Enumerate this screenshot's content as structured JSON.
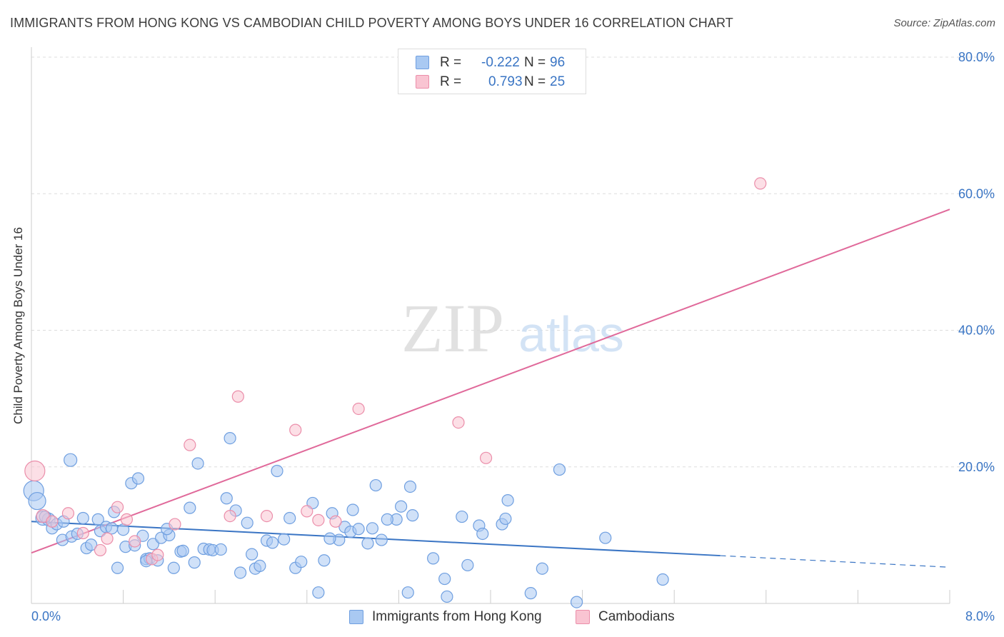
{
  "title": "IMMIGRANTS FROM HONG KONG VS CAMBODIAN CHILD POVERTY AMONG BOYS UNDER 16 CORRELATION CHART",
  "source": "Source: ZipAtlas.com",
  "watermark": {
    "zip": "ZIP",
    "atlas": "atlas"
  },
  "legend": {
    "rows": [
      {
        "r_label": "R =",
        "r_value": "-0.222",
        "n_label": "N =",
        "n_value": "96",
        "color": "#a9c9f2",
        "border": "#6f9fe0"
      },
      {
        "r_label": "R =",
        "r_value": "0.793",
        "n_label": "N =",
        "n_value": "25",
        "color": "#f9c4d2",
        "border": "#eb8eaa"
      }
    ]
  },
  "bottom_legend": {
    "series1": "Immigrants from Hong Kong",
    "series2": "Cambodians"
  },
  "colors": {
    "blue": "#3a75c4",
    "blue_fill": "#a9c9f2",
    "blue_stroke": "#6f9fe0",
    "pink": "#e0699a",
    "pink_fill": "#f9c4d2",
    "pink_stroke": "#eb8eaa",
    "grid": "#dddddd",
    "tick_text": "#3a75c4"
  },
  "chart_data": {
    "type": "scatter",
    "title": "IMMIGRANTS FROM HONG KONG VS CAMBODIAN CHILD POVERTY AMONG BOYS UNDER 16 CORRELATION CHART",
    "xlabel": "",
    "ylabel": "Child Poverty Among Boys Under 16",
    "xlim": [
      0,
      8
    ],
    "ylim": [
      0,
      80
    ],
    "x_tick_labels": [
      "0.0%",
      "8.0%"
    ],
    "y_tick_labels": [
      {
        "value": 20,
        "label": "20.0%"
      },
      {
        "value": 40,
        "label": "40.0%"
      },
      {
        "value": 60,
        "label": "60.0%"
      },
      {
        "value": 80,
        "label": "80.0%"
      }
    ],
    "series": [
      {
        "name": "Immigrants from Hong Kong",
        "color": "#6f9fe0",
        "trend": {
          "x0": 0,
          "y0": 12.0,
          "x1": 6.0,
          "y1": 7.0,
          "dashed_to_x": 8.0,
          "dashed_to_y": 5.3
        },
        "points": [
          [
            0.02,
            16.5,
            14
          ],
          [
            0.05,
            15.0,
            12
          ],
          [
            0.1,
            12.5,
            10
          ],
          [
            0.15,
            12.3,
            9
          ],
          [
            0.18,
            11.0,
            8
          ],
          [
            0.22,
            11.6,
            8
          ],
          [
            0.28,
            12.0,
            8
          ],
          [
            0.27,
            9.3,
            8
          ],
          [
            0.35,
            9.8,
            8
          ],
          [
            0.4,
            10.2,
            8
          ],
          [
            0.48,
            8.1,
            8
          ],
          [
            0.52,
            8.6,
            8
          ],
          [
            0.45,
            12.5,
            8
          ],
          [
            0.58,
            12.3,
            8
          ],
          [
            0.6,
            10.6,
            8
          ],
          [
            0.65,
            11.2,
            8
          ],
          [
            0.72,
            13.4,
            8
          ],
          [
            0.75,
            5.2,
            8
          ],
          [
            0.8,
            10.8,
            8
          ],
          [
            0.82,
            8.3,
            8
          ],
          [
            0.87,
            17.6,
            8
          ],
          [
            0.9,
            8.5,
            8
          ],
          [
            0.93,
            18.3,
            8
          ],
          [
            0.97,
            9.9,
            8
          ],
          [
            1.0,
            6.5,
            8
          ],
          [
            1.03,
            6.6,
            8
          ],
          [
            1.06,
            8.7,
            8
          ],
          [
            1.1,
            6.3,
            8
          ],
          [
            1.13,
            9.6,
            8
          ],
          [
            1.2,
            10.0,
            8
          ],
          [
            1.18,
            10.9,
            8
          ],
          [
            1.24,
            5.2,
            8
          ],
          [
            1.3,
            7.6,
            8
          ],
          [
            1.32,
            7.7,
            8
          ],
          [
            1.38,
            14.0,
            8
          ],
          [
            1.42,
            6.0,
            8
          ],
          [
            1.45,
            20.5,
            8
          ],
          [
            1.5,
            8.0,
            8
          ],
          [
            1.55,
            7.9,
            8
          ],
          [
            1.58,
            7.8,
            8
          ],
          [
            1.65,
            7.9,
            8
          ],
          [
            1.7,
            15.4,
            8
          ],
          [
            1.73,
            24.2,
            8
          ],
          [
            1.78,
            13.6,
            8
          ],
          [
            1.82,
            4.5,
            8
          ],
          [
            1.88,
            11.8,
            8
          ],
          [
            1.92,
            7.2,
            8
          ],
          [
            1.95,
            5.1,
            8
          ],
          [
            1.99,
            5.5,
            8
          ],
          [
            2.05,
            9.2,
            8
          ],
          [
            2.1,
            8.9,
            8
          ],
          [
            2.14,
            19.4,
            8
          ],
          [
            2.2,
            9.4,
            8
          ],
          [
            2.25,
            12.5,
            8
          ],
          [
            2.3,
            5.2,
            8
          ],
          [
            2.35,
            6.1,
            8
          ],
          [
            2.45,
            14.7,
            8
          ],
          [
            2.5,
            1.6,
            8
          ],
          [
            2.55,
            6.3,
            8
          ],
          [
            2.62,
            13.2,
            8
          ],
          [
            2.68,
            9.3,
            8
          ],
          [
            2.73,
            11.2,
            8
          ],
          [
            2.78,
            10.5,
            8
          ],
          [
            2.8,
            13.7,
            8
          ],
          [
            2.85,
            10.9,
            8
          ],
          [
            2.93,
            8.8,
            8
          ],
          [
            2.97,
            11.0,
            8
          ],
          [
            3.0,
            17.3,
            8
          ],
          [
            3.05,
            9.3,
            8
          ],
          [
            3.18,
            12.3,
            8
          ],
          [
            3.22,
            14.2,
            8
          ],
          [
            3.3,
            17.1,
            8
          ],
          [
            3.32,
            12.9,
            8
          ],
          [
            3.28,
            1.6,
            8
          ],
          [
            3.5,
            6.6,
            8
          ],
          [
            3.6,
            3.6,
            8
          ],
          [
            3.62,
            1.0,
            8
          ],
          [
            3.75,
            12.7,
            8
          ],
          [
            3.8,
            5.6,
            8
          ],
          [
            3.9,
            11.4,
            8
          ],
          [
            3.93,
            10.2,
            8
          ],
          [
            4.1,
            11.6,
            8
          ],
          [
            4.13,
            12.4,
            8
          ],
          [
            4.15,
            15.1,
            8
          ],
          [
            4.35,
            1.5,
            8
          ],
          [
            4.45,
            5.1,
            8
          ],
          [
            4.6,
            19.6,
            8
          ],
          [
            4.75,
            0.2,
            8
          ],
          [
            5.0,
            9.6,
            8
          ],
          [
            5.5,
            3.5,
            8
          ],
          [
            0.12,
            12.7,
            8
          ],
          [
            0.34,
            21.0,
            9
          ],
          [
            1.0,
            6.2,
            8
          ],
          [
            2.6,
            9.5,
            8
          ],
          [
            3.1,
            12.3,
            8
          ],
          [
            0.7,
            11.0,
            8
          ]
        ]
      },
      {
        "name": "Cambodians",
        "color": "#eb8eaa",
        "trend": {
          "x0": 0,
          "y0": 7.4,
          "x1": 8.0,
          "y1": 57.7
        },
        "points": [
          [
            0.03,
            19.4,
            14
          ],
          [
            0.1,
            12.8,
            9
          ],
          [
            0.18,
            12.0,
            8
          ],
          [
            0.32,
            13.2,
            8
          ],
          [
            0.45,
            10.3,
            8
          ],
          [
            0.6,
            7.8,
            8
          ],
          [
            0.66,
            9.5,
            8
          ],
          [
            0.75,
            14.1,
            8
          ],
          [
            0.83,
            12.3,
            8
          ],
          [
            0.9,
            9.1,
            8
          ],
          [
            1.05,
            6.5,
            8
          ],
          [
            1.1,
            7.1,
            8
          ],
          [
            1.25,
            11.6,
            8
          ],
          [
            1.38,
            23.2,
            8
          ],
          [
            1.73,
            12.8,
            8
          ],
          [
            1.8,
            30.3,
            8
          ],
          [
            2.05,
            12.8,
            8
          ],
          [
            2.3,
            25.4,
            8
          ],
          [
            2.4,
            13.5,
            8
          ],
          [
            2.5,
            12.2,
            8
          ],
          [
            2.65,
            12.0,
            8
          ],
          [
            2.85,
            28.5,
            8
          ],
          [
            3.72,
            26.5,
            8
          ],
          [
            3.96,
            21.3,
            8
          ],
          [
            6.35,
            61.5,
            8
          ]
        ]
      }
    ]
  }
}
